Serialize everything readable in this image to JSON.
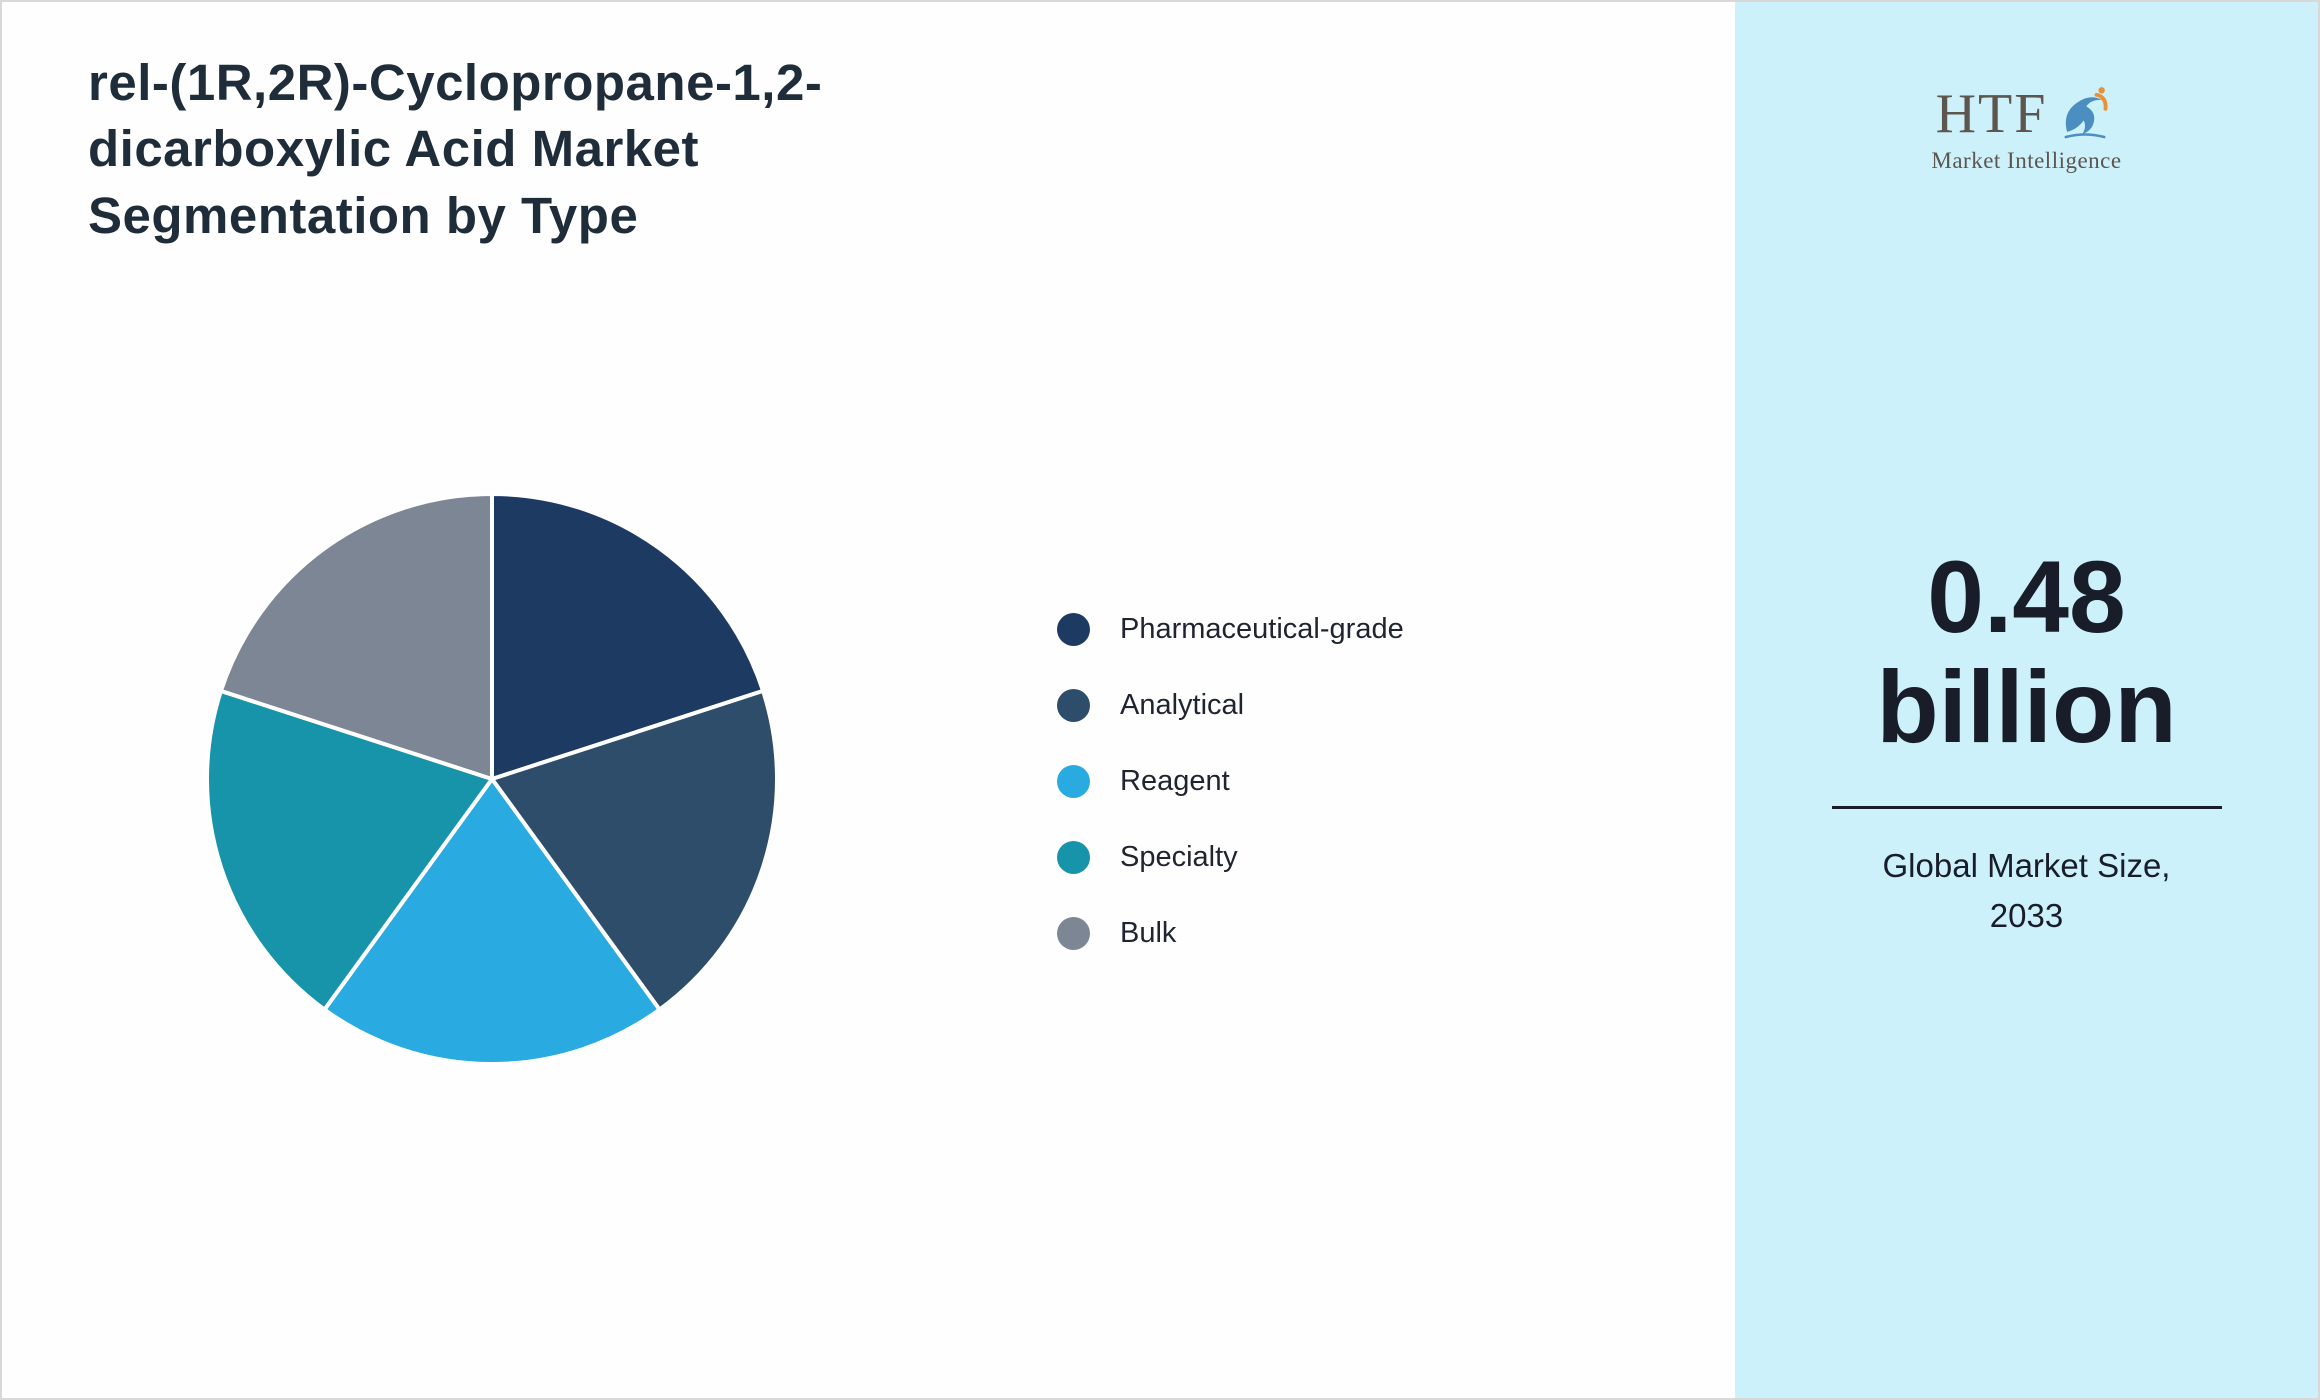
{
  "title_lines": [
    "rel-(1R,2R)-Cyclopropane-1,2-",
    "dicarboxylic Acid Market",
    "Segmentation by Type"
  ],
  "chart_data": {
    "type": "pie",
    "title": "rel-(1R,2R)-Cyclopropane-1,2-dicarboxylic Acid Market Segmentation by Type",
    "categories": [
      "Pharmaceutical-grade",
      "Analytical",
      "Reagent",
      "Specialty",
      "Bulk"
    ],
    "values": [
      20,
      20,
      20,
      20,
      20
    ],
    "colors": [
      "#1d3a63",
      "#2e4d6b",
      "#29abe2",
      "#1793aa",
      "#7d8694"
    ],
    "legend_position": "right",
    "start_angle_deg": -90,
    "direction": "clockwise",
    "slice_border_color": "#ffffff"
  },
  "sidebar": {
    "logo_text": "HTF",
    "logo_subtext": "Market Intelligence",
    "market_size_value_line1": "0.48",
    "market_size_value_line2": "billion",
    "market_size_label_line1": "Global Market Size,",
    "market_size_label_line2": "2033",
    "background_color": "#cdf1fa"
  }
}
